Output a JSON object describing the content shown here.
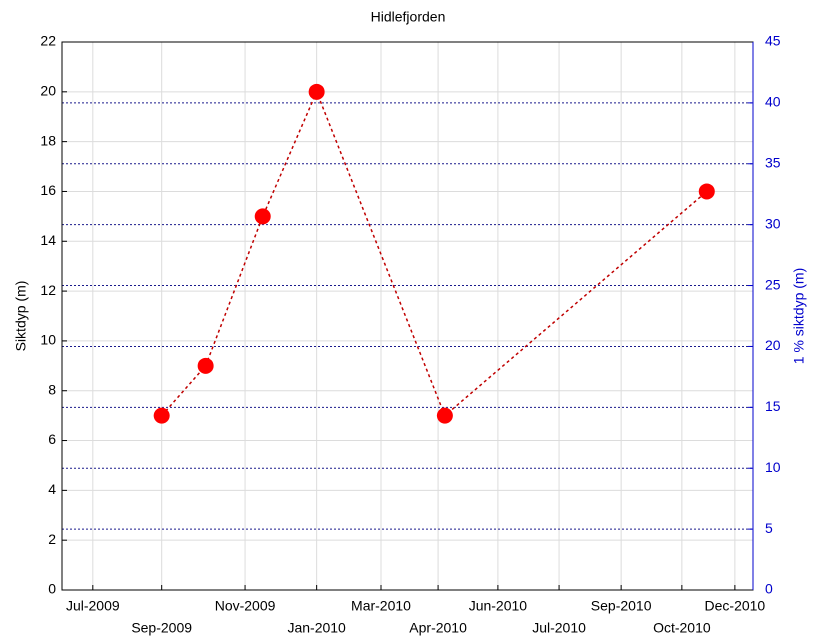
{
  "chart_data": {
    "type": "line",
    "title": "Hidlefjorden",
    "y_label": "Siktdyp (m)",
    "y2_label": "1 % siktdyp (m)",
    "x": [
      2009.652,
      2009.749,
      2009.875,
      2009.994,
      2010.277,
      2010.855
    ],
    "series": [
      {
        "values": [
          7,
          9,
          15,
          20,
          7,
          16
        ],
        "color": "#ff0000",
        "line_color": "#c00000"
      }
    ],
    "xlim": [
      2009.432,
      2010.957
    ],
    "xticks": [
      {
        "value": 2009.5,
        "label": "Jul-2009"
      },
      {
        "value": 2009.652,
        "label": "Sep-2009"
      },
      {
        "value": 2009.836,
        "label": "Nov-2009"
      },
      {
        "value": 2009.994,
        "label": "Jan-2010"
      },
      {
        "value": 2010.136,
        "label": "Mar-2010"
      },
      {
        "value": 2010.262,
        "label": "Apr-2010"
      },
      {
        "value": 2010.394,
        "label": "Jun-2010"
      },
      {
        "value": 2010.529,
        "label": "Jul-2010"
      },
      {
        "value": 2010.666,
        "label": "Sep-2010"
      },
      {
        "value": 2010.8,
        "label": "Oct-2010"
      },
      {
        "value": 2010.917,
        "label": "Dec-2010"
      }
    ],
    "ylim": [
      0,
      22
    ],
    "yticks": [
      0,
      2,
      4,
      6,
      8,
      10,
      12,
      14,
      16,
      18,
      20,
      22
    ],
    "y2lim": [
      0,
      45
    ],
    "y2ticks": [
      0,
      5,
      10,
      15,
      20,
      25,
      30,
      35,
      40,
      45
    ],
    "y2_color": "#0000cc",
    "grid": true
  }
}
